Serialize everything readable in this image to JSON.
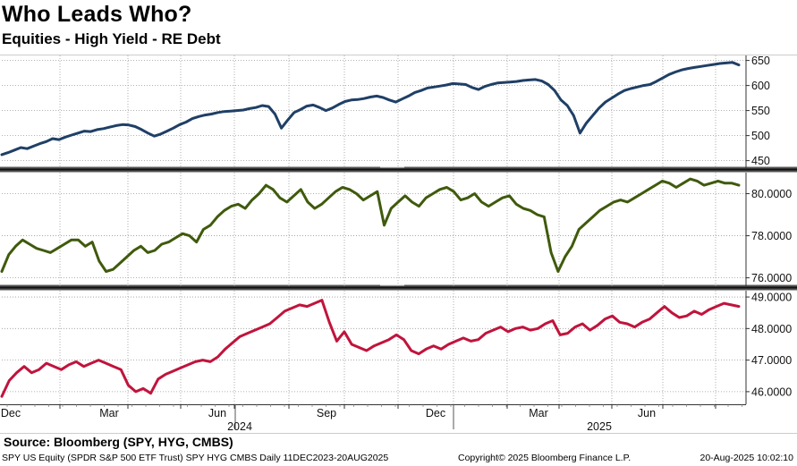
{
  "title": "Who Leads Who?",
  "subtitle": "Equities - High Yield - RE Debt",
  "source": "Source: Bloomberg (SPY, HYG, CMBS)",
  "footer": {
    "left": "SPY US Equity (SPDR S&P 500 ETF Trust) SPY HYG CMBS  Daily 11DEC2023-20AUG2025",
    "copyright": "Copyright© 2025 Bloomberg Finance L.P.",
    "timestamp": "20-Aug-2025 10:02:10"
  },
  "colors": {
    "spy": "#1f3f66",
    "hyg": "#3f5a0c",
    "cmbs": "#c0143c"
  },
  "chart_data": {
    "type": "line",
    "title": "Who Leads Who?",
    "x_tick_labels": [
      "Dec",
      "Mar",
      "Jun",
      "Sep",
      "Dec",
      "Mar",
      "Jun"
    ],
    "x_year_labels": [
      "2024",
      "2025"
    ],
    "date_range": [
      "2023-12-11",
      "2025-08-20"
    ],
    "panels": [
      {
        "name": "SPY",
        "ylim": [
          435,
          660
        ],
        "yticks": [
          "650",
          "600",
          "550",
          "500",
          "450"
        ],
        "tick_values": [
          650,
          600,
          550,
          500,
          450
        ],
        "color": "spy",
        "values": [
          462,
          466,
          471,
          476,
          474,
          479,
          484,
          488,
          494,
          492,
          497,
          501,
          505,
          509,
          508,
          512,
          514,
          517,
          520,
          522,
          521,
          518,
          512,
          505,
          499,
          503,
          509,
          515,
          522,
          527,
          534,
          538,
          541,
          543,
          546,
          548,
          549,
          550,
          551,
          554,
          556,
          560,
          558,
          543,
          515,
          531,
          546,
          552,
          559,
          561,
          556,
          550,
          555,
          562,
          568,
          571,
          572,
          574,
          577,
          579,
          576,
          571,
          567,
          573,
          579,
          586,
          590,
          595,
          597,
          599,
          601,
          604,
          603,
          602,
          596,
          592,
          598,
          602,
          605,
          606,
          607,
          608,
          610,
          611,
          612,
          609,
          602,
          590,
          571,
          560,
          540,
          505,
          525,
          540,
          555,
          567,
          575,
          583,
          590,
          594,
          597,
          600,
          602,
          608,
          615,
          622,
          627,
          631,
          634,
          636,
          638,
          640,
          642,
          644,
          645,
          646,
          641
        ]
      },
      {
        "name": "HYG",
        "ylim": [
          75.6,
          81.0
        ],
        "yticks": [
          "80.0000",
          "78.0000",
          "76.0000"
        ],
        "tick_values": [
          80,
          78,
          76
        ],
        "color": "hyg",
        "values": [
          76.3,
          77.1,
          77.5,
          77.8,
          77.6,
          77.4,
          77.3,
          77.2,
          77.4,
          77.6,
          77.8,
          77.8,
          77.5,
          77.7,
          76.8,
          76.3,
          76.4,
          76.7,
          77.0,
          77.3,
          77.5,
          77.2,
          77.3,
          77.6,
          77.7,
          77.9,
          78.1,
          78.0,
          77.7,
          78.3,
          78.5,
          78.9,
          79.2,
          79.4,
          79.5,
          79.3,
          79.7,
          80.0,
          80.4,
          80.2,
          79.8,
          79.6,
          79.9,
          80.2,
          79.6,
          79.3,
          79.5,
          79.8,
          80.1,
          80.3,
          80.2,
          80.0,
          79.7,
          79.9,
          80.1,
          78.5,
          79.3,
          79.6,
          79.9,
          79.6,
          79.4,
          79.8,
          80.0,
          80.2,
          80.3,
          80.1,
          79.7,
          79.8,
          80.0,
          79.6,
          79.4,
          79.6,
          79.8,
          79.9,
          79.5,
          79.3,
          79.2,
          79.0,
          78.9,
          77.2,
          76.3,
          77.0,
          77.5,
          78.3,
          78.6,
          78.9,
          79.2,
          79.4,
          79.6,
          79.7,
          79.6,
          79.8,
          80.0,
          80.2,
          80.4,
          80.6,
          80.5,
          80.3,
          80.5,
          80.7,
          80.6,
          80.4,
          80.5,
          80.6,
          80.5,
          80.5,
          80.4
        ]
      },
      {
        "name": "CMBS",
        "ylim": [
          45.6,
          49.2
        ],
        "yticks": [
          "49.0000",
          "48.0000",
          "47.0000",
          "46.0000"
        ],
        "tick_values": [
          49,
          48,
          47,
          46
        ],
        "color": "cmbs",
        "values": [
          45.85,
          46.35,
          46.6,
          46.8,
          46.6,
          46.7,
          46.9,
          46.8,
          46.7,
          46.85,
          46.95,
          46.8,
          46.9,
          47.0,
          46.9,
          46.8,
          46.7,
          46.2,
          46.0,
          46.1,
          45.95,
          46.4,
          46.55,
          46.65,
          46.75,
          46.85,
          46.95,
          47.0,
          46.95,
          47.1,
          47.35,
          47.55,
          47.75,
          47.85,
          47.95,
          48.05,
          48.15,
          48.35,
          48.55,
          48.65,
          48.75,
          48.7,
          48.8,
          48.9,
          48.2,
          47.6,
          47.9,
          47.5,
          47.4,
          47.3,
          47.45,
          47.55,
          47.65,
          47.8,
          47.65,
          47.3,
          47.2,
          47.35,
          47.45,
          47.35,
          47.5,
          47.6,
          47.7,
          47.6,
          47.65,
          47.85,
          47.95,
          48.05,
          47.9,
          48.0,
          48.05,
          47.95,
          48.0,
          48.15,
          48.25,
          47.8,
          47.85,
          48.05,
          48.15,
          47.95,
          48.1,
          48.3,
          48.4,
          48.2,
          48.15,
          48.05,
          48.2,
          48.3,
          48.5,
          48.7,
          48.5,
          48.35,
          48.4,
          48.55,
          48.45,
          48.6,
          48.7,
          48.8,
          48.75,
          48.7
        ]
      }
    ]
  }
}
